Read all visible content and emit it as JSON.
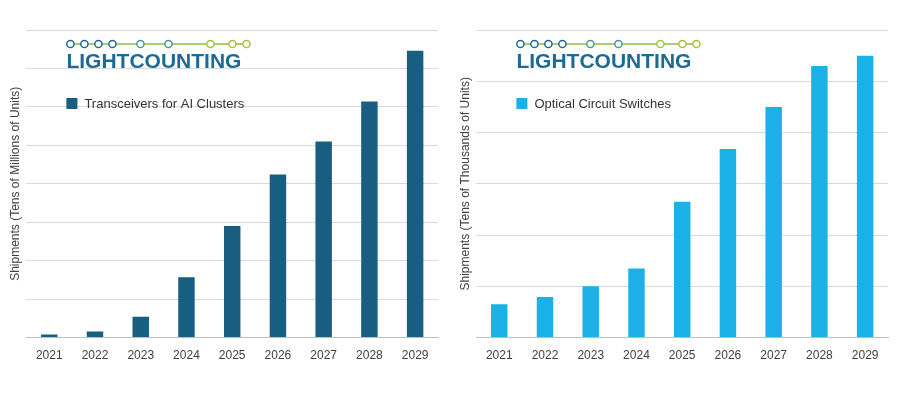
{
  "chart_data": [
    {
      "type": "bar",
      "annotations": [
        "LIGHTCOUNTING"
      ],
      "y_label": "Shipments (Tens of Millions of Units)",
      "categories": [
        "2021",
        "2022",
        "2023",
        "2024",
        "2025",
        "2026",
        "2027",
        "2028",
        "2029"
      ],
      "series": [
        {
          "name": "Transceivers for AI Clusters",
          "color": "#175e80",
          "values": [
            0.08,
            0.16,
            0.54,
            1.57,
            2.9,
            4.24,
            5.1,
            6.14,
            7.46
          ]
        }
      ],
      "ylim": [
        0,
        8
      ],
      "yticks": [
        0,
        1,
        2,
        3,
        4,
        5,
        6,
        7,
        8
      ],
      "grid": true,
      "legend": "upper left",
      "tick_labels": "x"
    },
    {
      "type": "bar",
      "annotations": [
        "LIGHTCOUNTING"
      ],
      "y_label": "Shipments (Tens of Thousands of Units)",
      "categories": [
        "2021",
        "2022",
        "2023",
        "2024",
        "2025",
        "2026",
        "2027",
        "2028",
        "2029"
      ],
      "series": [
        {
          "name": "Optical Circuit Switches",
          "color": "#1cb1e6",
          "values": [
            0.65,
            0.79,
            1.0,
            1.35,
            2.65,
            3.68,
            4.5,
            5.3,
            5.5
          ]
        }
      ],
      "ylim": [
        0,
        6
      ],
      "yticks": [
        0,
        1,
        2,
        3,
        4,
        5,
        6
      ],
      "grid": true,
      "legend": "upper left",
      "tick_labels": "x"
    }
  ]
}
